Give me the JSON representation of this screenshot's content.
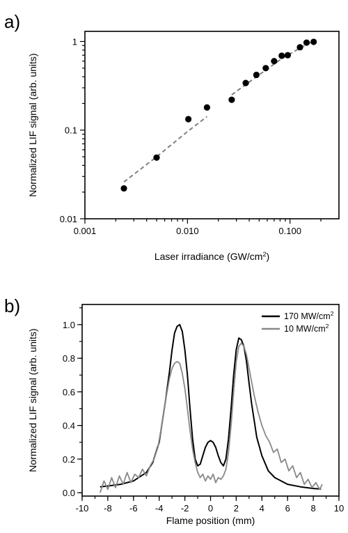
{
  "chart_data": [
    {
      "panel_label": "a)",
      "type": "scatter",
      "xlabel": "Laser irradiance (GW/cm",
      "xlabel_sup": "2",
      "xlabel_end": ")",
      "ylabel": "Normalized LIF signal (arb. units)",
      "xscale": "log",
      "yscale": "log",
      "xlim": [
        0.001,
        0.3
      ],
      "ylim": [
        0.01,
        1.3
      ],
      "xticks": [
        {
          "value": 0.001,
          "label": "0.001"
        },
        {
          "value": 0.01,
          "label": "0.010"
        },
        {
          "value": 0.1,
          "label": "0.100"
        }
      ],
      "yticks": [
        {
          "value": 0.01,
          "label": "0.01"
        },
        {
          "value": 0.1,
          "label": "0.1"
        },
        {
          "value": 1,
          "label": "1"
        }
      ],
      "points": {
        "x": [
          0.0024,
          0.005,
          0.0102,
          0.0155,
          0.027,
          0.037,
          0.047,
          0.058,
          0.07,
          0.083,
          0.095,
          0.125,
          0.145,
          0.17
        ],
        "y": [
          0.022,
          0.049,
          0.133,
          0.18,
          0.22,
          0.34,
          0.42,
          0.5,
          0.6,
          0.69,
          0.7,
          0.86,
          0.97,
          0.99
        ]
      },
      "fits": [
        {
          "x": [
            0.0024,
            0.005,
            0.0102,
            0.0155
          ],
          "y": [
            0.026,
            0.05,
            0.098,
            0.142
          ]
        },
        {
          "x": [
            0.027,
            0.047,
            0.083,
            0.125,
            0.17
          ],
          "y": [
            0.25,
            0.4,
            0.64,
            0.84,
            1.02
          ]
        }
      ],
      "colors": {
        "points": "#000000",
        "fit": "#808080"
      }
    },
    {
      "panel_label": "b)",
      "type": "line",
      "xlabel": "Flame position (mm)",
      "ylabel": "Normalized LIF signal (arb. units)",
      "xlim": [
        -10,
        10
      ],
      "ylim": [
        -0.02,
        1.12
      ],
      "xticks": [
        -10,
        -8,
        -6,
        -4,
        -2,
        0,
        2,
        4,
        6,
        8,
        10
      ],
      "ytick_labels": [
        "0.0",
        "0.2",
        "0.4",
        "0.6",
        "0.8",
        "1.0"
      ],
      "yticks": [
        0,
        0.2,
        0.4,
        0.6,
        0.8,
        1.0
      ],
      "legend_position": "top-right",
      "series": [
        {
          "name": "170 MW/cm",
          "name_sup": "2",
          "color": "#000000",
          "x": [
            -8.6,
            -8,
            -7,
            -6,
            -5,
            -4.5,
            -4,
            -3.5,
            -3.2,
            -3,
            -2.8,
            -2.6,
            -2.4,
            -2.2,
            -2,
            -1.8,
            -1.6,
            -1.4,
            -1.2,
            -1,
            -0.8,
            -0.6,
            -0.4,
            -0.2,
            0,
            0.2,
            0.4,
            0.6,
            0.8,
            1,
            1.2,
            1.4,
            1.6,
            1.8,
            2,
            2.2,
            2.4,
            2.6,
            2.8,
            3,
            3.2,
            3.4,
            3.6,
            4,
            4.5,
            5,
            6,
            7,
            8,
            8.6
          ],
          "y": [
            0.035,
            0.04,
            0.05,
            0.07,
            0.12,
            0.18,
            0.3,
            0.55,
            0.72,
            0.85,
            0.95,
            0.99,
            1.0,
            0.96,
            0.85,
            0.7,
            0.5,
            0.32,
            0.2,
            0.16,
            0.17,
            0.22,
            0.27,
            0.3,
            0.31,
            0.3,
            0.27,
            0.22,
            0.18,
            0.16,
            0.2,
            0.32,
            0.5,
            0.7,
            0.85,
            0.92,
            0.91,
            0.87,
            0.78,
            0.65,
            0.53,
            0.43,
            0.33,
            0.22,
            0.13,
            0.09,
            0.05,
            0.035,
            0.025,
            0.022
          ]
        },
        {
          "name": "10 MW/cm",
          "name_sup": "2",
          "color": "#888888",
          "x": [
            -8.6,
            -8.3,
            -8,
            -7.7,
            -7.4,
            -7.1,
            -6.8,
            -6.5,
            -6.2,
            -5.9,
            -5.6,
            -5.3,
            -5,
            -4.7,
            -4.4,
            -4.1,
            -3.8,
            -3.5,
            -3.2,
            -3,
            -2.8,
            -2.6,
            -2.4,
            -2.2,
            -2,
            -1.8,
            -1.6,
            -1.4,
            -1.2,
            -1,
            -0.8,
            -0.6,
            -0.4,
            -0.2,
            0,
            0.2,
            0.4,
            0.6,
            0.8,
            1,
            1.2,
            1.4,
            1.6,
            1.8,
            2,
            2.2,
            2.4,
            2.6,
            2.8,
            3,
            3.2,
            3.4,
            3.7,
            4,
            4.3,
            4.6,
            4.9,
            5.2,
            5.5,
            5.8,
            6.1,
            6.4,
            6.7,
            7,
            7.3,
            7.6,
            7.9,
            8.2,
            8.5,
            8.7
          ],
          "y": [
            0.0,
            0.07,
            0.02,
            0.09,
            0.03,
            0.1,
            0.05,
            0.12,
            0.06,
            0.11,
            0.09,
            0.14,
            0.1,
            0.16,
            0.2,
            0.27,
            0.4,
            0.55,
            0.68,
            0.74,
            0.77,
            0.78,
            0.77,
            0.71,
            0.62,
            0.5,
            0.37,
            0.26,
            0.18,
            0.12,
            0.09,
            0.11,
            0.07,
            0.1,
            0.08,
            0.11,
            0.06,
            0.09,
            0.08,
            0.1,
            0.14,
            0.24,
            0.4,
            0.6,
            0.78,
            0.87,
            0.89,
            0.87,
            0.82,
            0.74,
            0.66,
            0.58,
            0.48,
            0.4,
            0.34,
            0.3,
            0.24,
            0.26,
            0.18,
            0.2,
            0.13,
            0.16,
            0.09,
            0.12,
            0.05,
            0.08,
            0.03,
            0.06,
            0.02,
            0.05
          ]
        }
      ]
    }
  ]
}
